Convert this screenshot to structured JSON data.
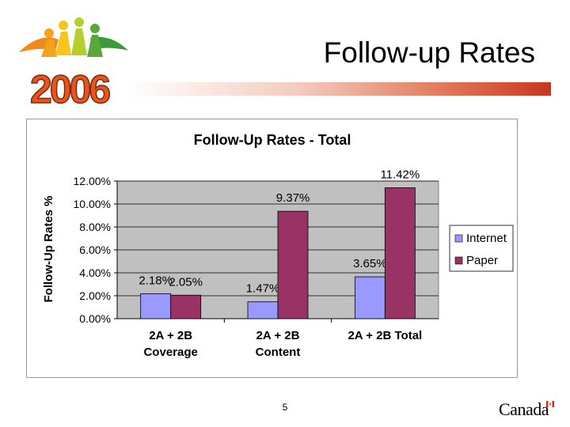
{
  "slide": {
    "title": "Follow-up Rates",
    "page_number": "5",
    "logo_text": "2006",
    "wordmark": "Canada"
  },
  "colors": {
    "internet": "#9999ff",
    "paper": "#993366",
    "plot_bg": "#c0c0c0",
    "title_rule_end": "#c9361f"
  },
  "chart_data": {
    "type": "bar",
    "title": "Follow-Up Rates - Total",
    "xlabel": "",
    "ylabel": "Follow-Up Rates %",
    "categories": [
      [
        "2A + 2B",
        "Coverage"
      ],
      [
        "2A + 2B",
        "Content"
      ],
      [
        "2A + 2B Total"
      ]
    ],
    "series": [
      {
        "name": "Internet",
        "values": [
          2.18,
          1.47,
          3.65
        ],
        "labels": [
          "2.18%",
          "1.47%",
          "3.65%"
        ]
      },
      {
        "name": "Paper",
        "values": [
          2.05,
          9.37,
          11.42
        ],
        "labels": [
          "2.05%",
          "9.37%",
          "11.42%"
        ]
      }
    ],
    "yticks": [
      "0.00%",
      "2.00%",
      "4.00%",
      "6.00%",
      "8.00%",
      "10.00%",
      "12.00%"
    ],
    "ylim": [
      0,
      12
    ],
    "grid": true,
    "legend": "right"
  }
}
